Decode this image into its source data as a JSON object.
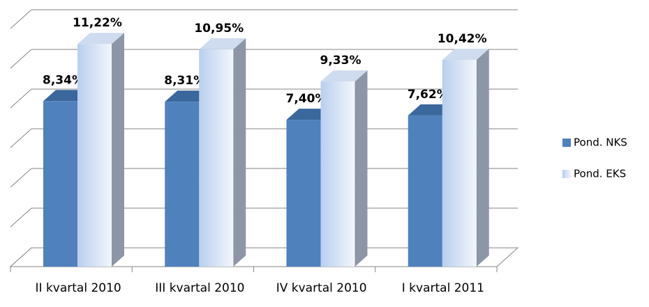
{
  "chart_data": {
    "type": "bar3d",
    "categories": [
      "II kvartal 2010",
      "III kvartal 2010",
      "IV kvartal 2010",
      "I kvartal 2011"
    ],
    "series": [
      {
        "name": "Pond. NKS",
        "color": "#4f81bd",
        "values": [
          8.34,
          8.31,
          7.4,
          7.62
        ],
        "value_labels": [
          "8,34%",
          "8,31%",
          "7,40%",
          "7,62%"
        ]
      },
      {
        "name": "Pond. EKS",
        "color": "#b9cfee",
        "values": [
          11.22,
          10.95,
          9.33,
          10.42
        ],
        "value_labels": [
          "11,22%",
          "10,95%",
          "9,33%",
          "10,42%"
        ]
      }
    ],
    "ylim": [
      0,
      12
    ],
    "yticks": [
      0,
      2,
      4,
      6,
      8,
      10,
      12
    ],
    "grid": true,
    "legend": "right"
  }
}
